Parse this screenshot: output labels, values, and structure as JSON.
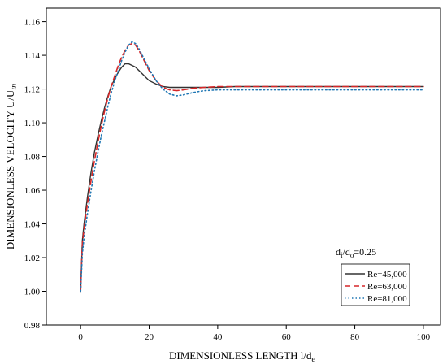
{
  "chart_data": {
    "type": "line",
    "xlabel": "DIMENSIONLESS LENGTH l/d",
    "xlabel_main": "DIMENSIONLESS LENGTH l/d",
    "xlabel_sub": "e",
    "ylabel_main": "DIMENSIONLESS VELOCITY U/U",
    "ylabel_sub": "in",
    "xlim": [
      -10,
      105
    ],
    "ylim": [
      0.98,
      1.168
    ],
    "x_ticks": [
      0,
      20,
      40,
      60,
      80,
      100
    ],
    "x_tick_labels": [
      "0",
      "20",
      "40",
      "60",
      "80",
      "100"
    ],
    "y_ticks": [
      0.98,
      1.0,
      1.02,
      1.04,
      1.06,
      1.08,
      1.1,
      1.12,
      1.14,
      1.16
    ],
    "y_tick_labels": [
      "0.98",
      "1.00",
      "1.02",
      "1.04",
      "1.06",
      "1.08",
      "1.10",
      "1.12",
      "1.14",
      "1.16"
    ],
    "grid": false,
    "legend_position": "bottom-right",
    "annotation": {
      "d1": "d",
      "s1": "i",
      "mid": "/d",
      "s2": "o",
      "tail": "=0.25"
    },
    "series": [
      {
        "name": "Re=45,000",
        "color": "#333333",
        "style": "solid",
        "x": [
          0,
          0.5,
          1,
          2,
          3,
          4,
          5,
          6,
          7,
          8,
          9,
          10,
          11,
          12,
          13,
          14,
          15,
          16,
          17,
          18,
          19,
          20,
          22,
          24,
          26,
          28,
          30,
          33,
          36,
          40,
          45,
          50,
          60,
          70,
          80,
          90,
          100
        ],
        "y": [
          1.0,
          1.03,
          1.04,
          1.056,
          1.07,
          1.082,
          1.092,
          1.101,
          1.109,
          1.116,
          1.122,
          1.126,
          1.13,
          1.133,
          1.135,
          1.135,
          1.134,
          1.133,
          1.131,
          1.129,
          1.127,
          1.125,
          1.123,
          1.1215,
          1.121,
          1.121,
          1.121,
          1.121,
          1.121,
          1.121,
          1.1215,
          1.1215,
          1.1215,
          1.1215,
          1.1215,
          1.1215,
          1.1215
        ]
      },
      {
        "name": "Re=63,000",
        "color": "#d62728",
        "style": "dashed",
        "x": [
          0,
          0.5,
          1,
          2,
          3,
          4,
          5,
          6,
          7,
          8,
          9,
          10,
          11,
          12,
          13,
          14,
          15,
          16,
          17,
          18,
          19,
          20,
          22,
          24,
          26,
          28,
          30,
          33,
          36,
          40,
          45,
          50,
          60,
          70,
          80,
          90,
          100
        ],
        "y": [
          1.0,
          1.028,
          1.037,
          1.052,
          1.065,
          1.077,
          1.088,
          1.098,
          1.107,
          1.115,
          1.122,
          1.128,
          1.134,
          1.139,
          1.143,
          1.146,
          1.147,
          1.146,
          1.143,
          1.139,
          1.135,
          1.131,
          1.125,
          1.121,
          1.1195,
          1.119,
          1.1195,
          1.1205,
          1.121,
          1.1215,
          1.1215,
          1.1215,
          1.1215,
          1.1215,
          1.1215,
          1.1215,
          1.1215
        ]
      },
      {
        "name": "Re=81,000",
        "color": "#1f77b4",
        "style": "dotted",
        "x": [
          0,
          0.5,
          1,
          2,
          3,
          4,
          5,
          6,
          7,
          8,
          9,
          10,
          11,
          12,
          13,
          14,
          15,
          16,
          17,
          18,
          19,
          20,
          22,
          24,
          26,
          28,
          30,
          33,
          36,
          40,
          45,
          50,
          60,
          70,
          80,
          90,
          100
        ],
        "y": [
          1.0,
          1.022,
          1.032,
          1.046,
          1.059,
          1.071,
          1.082,
          1.092,
          1.101,
          1.11,
          1.118,
          1.125,
          1.131,
          1.137,
          1.142,
          1.146,
          1.148,
          1.147,
          1.144,
          1.14,
          1.136,
          1.132,
          1.125,
          1.12,
          1.117,
          1.116,
          1.1165,
          1.118,
          1.119,
          1.1195,
          1.1195,
          1.1195,
          1.1195,
          1.1195,
          1.1195,
          1.1195,
          1.1195
        ]
      }
    ]
  }
}
